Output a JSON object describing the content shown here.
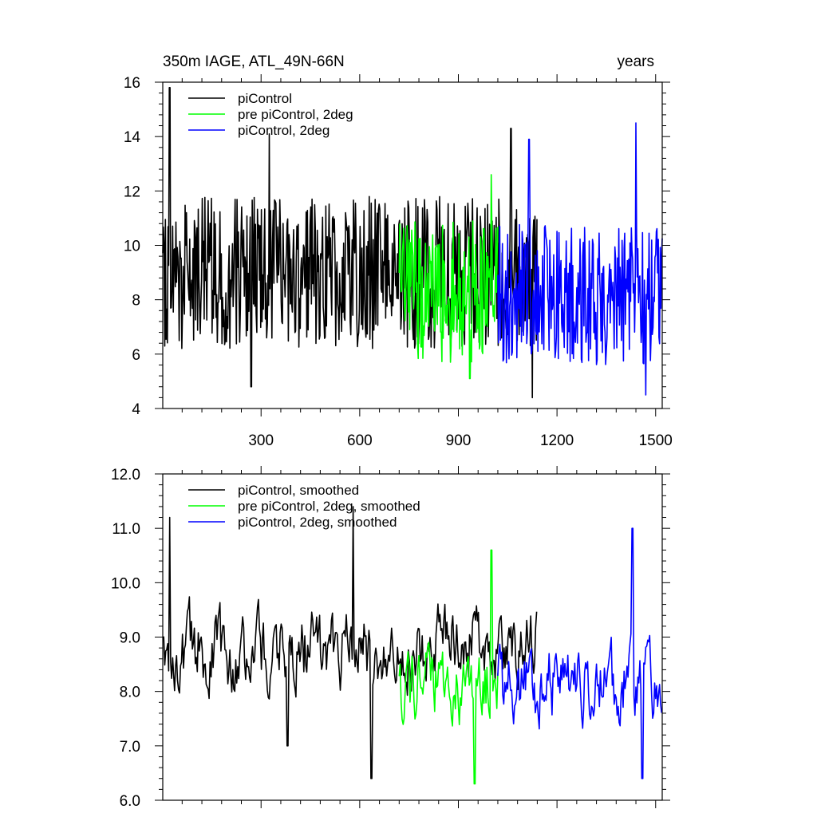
{
  "chart_data": [
    {
      "type": "line",
      "title_left": "350m IAGE, ATL_49N-66N",
      "title_right": "years",
      "xlim": [
        1,
        1520
      ],
      "ylim": [
        4,
        16
      ],
      "xticks": [
        300,
        600,
        900,
        1200,
        1500
      ],
      "xtick_labels": [
        "300",
        "600",
        "900",
        "1200",
        "1500"
      ],
      "yticks": [
        4,
        6,
        8,
        10,
        12,
        14,
        16
      ],
      "ytick_labels": [
        "4",
        "6",
        "8",
        "10",
        "12",
        "14",
        "16"
      ],
      "grid": false,
      "legend_position": "top-left",
      "series": [
        {
          "name": "piControl",
          "color": "#000000",
          "x_start": 1,
          "x_end": 1140,
          "mean": 9.0,
          "amplitude": 2.8,
          "peaks": [
            [
              22,
              15.8
            ],
            [
              325,
              14.1
            ],
            [
              1060,
              14.3
            ],
            [
              1125,
              4.4
            ],
            [
              270,
              4.8
            ]
          ]
        },
        {
          "name": "pre piControl, 2deg",
          "color": "#00ff00",
          "x_start": 720,
          "x_end": 1020,
          "mean": 8.3,
          "amplitude": 2.6,
          "peaks": [
            [
              1000,
              12.6
            ],
            [
              935,
              5.1
            ]
          ]
        },
        {
          "name": "piControl, 2deg",
          "color": "#0000ff",
          "x_start": 1020,
          "x_end": 1520,
          "mean": 8.2,
          "amplitude": 2.6,
          "peaks": [
            [
              1440,
              14.5
            ],
            [
              1115,
              13.9
            ],
            [
              1470,
              4.5
            ]
          ]
        }
      ]
    },
    {
      "type": "line",
      "xlim": [
        1,
        1520
      ],
      "ylim": [
        6,
        12
      ],
      "xticks": [
        300,
        600,
        900,
        1200,
        1500
      ],
      "yticks": [
        6,
        7,
        8,
        9,
        10,
        11,
        12
      ],
      "ytick_labels": [
        "6.0",
        "7.0",
        "8.0",
        "9.0",
        "10.0",
        "11.0",
        "12.0"
      ],
      "grid": false,
      "legend_position": "top-left",
      "series": [
        {
          "name": "piControl, smoothed",
          "color": "#000000",
          "x_start": 1,
          "x_end": 1140,
          "mean": 8.8,
          "amplitude": 1.2,
          "peaks": [
            [
              22,
              11.2
            ],
            [
              580,
              11.4
            ],
            [
              635,
              6.4
            ],
            [
              380,
              7.0
            ]
          ]
        },
        {
          "name": "pre piControl, 2deg, smoothed",
          "color": "#00ff00",
          "x_start": 720,
          "x_end": 1020,
          "mean": 8.1,
          "amplitude": 1.2,
          "peaks": [
            [
              1000,
              10.6
            ],
            [
              950,
              6.3
            ]
          ]
        },
        {
          "name": "piControl, 2deg, smoothed",
          "color": "#0000ff",
          "x_start": 1020,
          "x_end": 1520,
          "mean": 8.1,
          "amplitude": 1.2,
          "peaks": [
            [
              1430,
              11.0
            ],
            [
              1460,
              6.4
            ]
          ]
        }
      ]
    }
  ]
}
